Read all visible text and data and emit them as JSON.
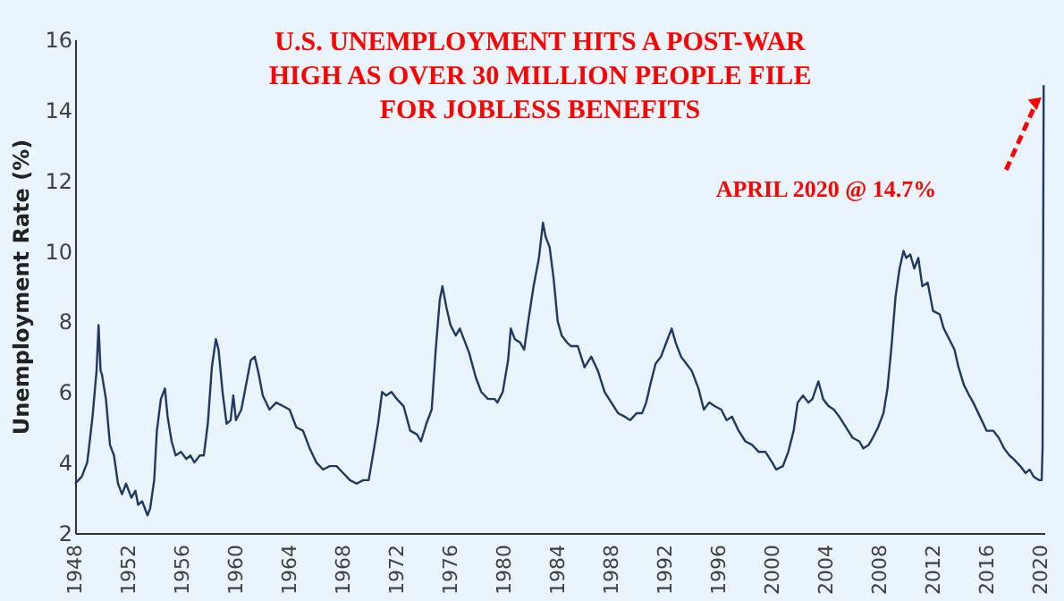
{
  "chart_data": {
    "type": "line",
    "title": "U.S. UNEMPLOYMENT HITS A POST-WAR HIGH AS OVER 30 MILLION PEOPLE FILE FOR JOBLESS BENEFITS",
    "ylabel": "Unemployment Rate (%)",
    "x": [
      1948.0,
      1948.5,
      1948.9,
      1949.0,
      1949.3,
      1949.6,
      1949.75,
      1949.9,
      1950.0,
      1950.3,
      1950.6,
      1950.9,
      1951.2,
      1951.5,
      1951.8,
      1952.2,
      1952.5,
      1952.7,
      1953.0,
      1953.4,
      1953.6,
      1953.9,
      1954.1,
      1954.4,
      1954.7,
      1954.9,
      1955.2,
      1955.5,
      1955.9,
      1956.3,
      1956.6,
      1956.9,
      1957.3,
      1957.6,
      1957.9,
      1958.2,
      1958.5,
      1958.7,
      1959.0,
      1959.3,
      1959.6,
      1959.8,
      1960.0,
      1960.4,
      1960.8,
      1961.1,
      1961.4,
      1961.7,
      1962.0,
      1962.5,
      1963.0,
      1963.5,
      1964.0,
      1964.5,
      1965.0,
      1965.5,
      1966.0,
      1966.5,
      1967.0,
      1967.5,
      1968.0,
      1968.5,
      1969.0,
      1969.5,
      1969.9,
      1970.3,
      1970.6,
      1970.9,
      1971.2,
      1971.6,
      1972.0,
      1972.5,
      1973.0,
      1973.5,
      1973.8,
      1974.2,
      1974.6,
      1974.9,
      1975.2,
      1975.4,
      1975.7,
      1976.0,
      1976.4,
      1976.7,
      1977.0,
      1977.4,
      1977.9,
      1978.3,
      1978.8,
      1979.3,
      1979.5,
      1979.9,
      1980.3,
      1980.5,
      1980.8,
      1981.2,
      1981.5,
      1981.8,
      1982.2,
      1982.6,
      1982.9,
      1983.1,
      1983.4,
      1983.7,
      1984.0,
      1984.3,
      1984.7,
      1985.0,
      1985.5,
      1986.0,
      1986.5,
      1987.0,
      1987.5,
      1988.0,
      1988.5,
      1989.0,
      1989.4,
      1989.9,
      1990.3,
      1990.6,
      1990.9,
      1991.3,
      1991.7,
      1992.0,
      1992.5,
      1992.8,
      1993.2,
      1993.6,
      1994.0,
      1994.5,
      1994.9,
      1995.3,
      1995.7,
      1996.2,
      1996.6,
      1997.0,
      1997.5,
      1998.0,
      1998.5,
      1999.0,
      1999.5,
      2000.0,
      2000.3,
      2000.8,
      2001.2,
      2001.6,
      2001.9,
      2002.3,
      2002.7,
      2003.0,
      2003.45,
      2003.8,
      2004.2,
      2004.6,
      2005.0,
      2005.5,
      2006.0,
      2006.5,
      2006.8,
      2007.2,
      2007.5,
      2007.9,
      2008.3,
      2008.6,
      2008.9,
      2009.2,
      2009.5,
      2009.8,
      2010.0,
      2010.3,
      2010.6,
      2010.9,
      2011.2,
      2011.6,
      2012.0,
      2012.5,
      2012.8,
      2013.2,
      2013.6,
      2013.9,
      2014.3,
      2014.7,
      2015.0,
      2015.5,
      2016.0,
      2016.5,
      2016.9,
      2017.3,
      2017.7,
      2018.0,
      2018.5,
      2018.9,
      2019.2,
      2019.5,
      2019.9,
      2020.1,
      2020.17,
      2020.25
    ],
    "series": [
      {
        "color": "#1f3864",
        "values": [
          3.4,
          3.6,
          4.0,
          4.3,
          5.3,
          6.6,
          7.9,
          6.6,
          6.5,
          5.8,
          4.5,
          4.2,
          3.4,
          3.1,
          3.4,
          3.0,
          3.2,
          2.8,
          2.9,
          2.5,
          2.7,
          3.5,
          4.9,
          5.8,
          6.1,
          5.3,
          4.6,
          4.2,
          4.3,
          4.1,
          4.2,
          4.0,
          4.2,
          4.2,
          5.1,
          6.7,
          7.5,
          7.2,
          6.0,
          5.1,
          5.2,
          5.9,
          5.2,
          5.5,
          6.3,
          6.9,
          7.0,
          6.5,
          5.9,
          5.5,
          5.7,
          5.6,
          5.5,
          5.0,
          4.9,
          4.4,
          4.0,
          3.8,
          3.9,
          3.9,
          3.7,
          3.5,
          3.4,
          3.5,
          3.5,
          4.4,
          5.1,
          6.0,
          5.9,
          6.0,
          5.8,
          5.6,
          4.9,
          4.8,
          4.6,
          5.1,
          5.5,
          7.2,
          8.6,
          9.0,
          8.4,
          7.9,
          7.6,
          7.8,
          7.5,
          7.1,
          6.4,
          6.0,
          5.8,
          5.8,
          5.7,
          6.0,
          6.9,
          7.8,
          7.5,
          7.4,
          7.2,
          8.0,
          9.0,
          9.8,
          10.8,
          10.4,
          10.1,
          9.2,
          8.0,
          7.6,
          7.4,
          7.3,
          7.3,
          6.7,
          7.0,
          6.6,
          6.0,
          5.7,
          5.4,
          5.3,
          5.2,
          5.4,
          5.4,
          5.7,
          6.2,
          6.8,
          7.0,
          7.3,
          7.8,
          7.4,
          7.0,
          6.8,
          6.6,
          6.1,
          5.5,
          5.7,
          5.6,
          5.5,
          5.2,
          5.3,
          4.9,
          4.6,
          4.5,
          4.3,
          4.3,
          4.0,
          3.8,
          3.9,
          4.3,
          4.9,
          5.7,
          5.9,
          5.7,
          5.8,
          6.3,
          5.8,
          5.6,
          5.5,
          5.3,
          5.0,
          4.7,
          4.6,
          4.4,
          4.5,
          4.7,
          5.0,
          5.4,
          6.1,
          7.3,
          8.7,
          9.5,
          10.0,
          9.8,
          9.9,
          9.5,
          9.8,
          9.0,
          9.1,
          8.3,
          8.2,
          7.8,
          7.5,
          7.2,
          6.7,
          6.2,
          5.9,
          5.7,
          5.3,
          4.9,
          4.9,
          4.7,
          4.4,
          4.2,
          4.1,
          3.9,
          3.7,
          3.8,
          3.6,
          3.5,
          3.5,
          4.4,
          14.7
        ]
      }
    ],
    "xlim": [
      1948,
      2020.3
    ],
    "xticks": [
      1948,
      1952,
      1956,
      1960,
      1964,
      1968,
      1972,
      1976,
      1980,
      1984,
      1988,
      1992,
      1996,
      2000,
      2004,
      2008,
      2012,
      2016,
      2020
    ],
    "ylim": [
      2,
      16
    ],
    "yticks": [
      2,
      4,
      6,
      8,
      10,
      12,
      14,
      16
    ],
    "grid": false,
    "annotations": [
      "APRIL 2020 @ 14.7%"
    ]
  }
}
